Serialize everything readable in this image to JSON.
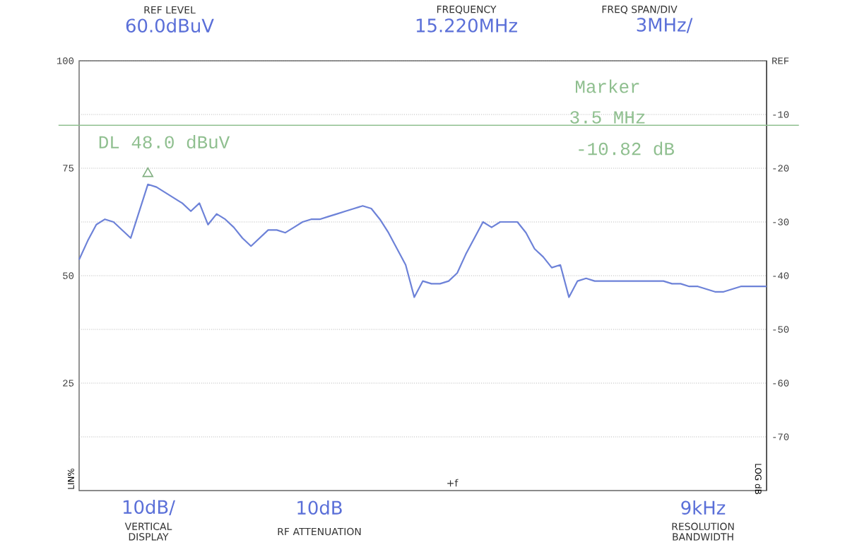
{
  "chart_data": {
    "type": "line",
    "ylabel": "LIN%",
    "y2label": "LOG dB",
    "categories": [
      null,
      null,
      null,
      null,
      null,
      null,
      null,
      null,
      null,
      null,
      null,
      null,
      null,
      null,
      null,
      null,
      null,
      null,
      null,
      null,
      null,
      null,
      null,
      null,
      null,
      null,
      null,
      null,
      null,
      null,
      null,
      null,
      null,
      null,
      null,
      null,
      null,
      null,
      null,
      null,
      null,
      null,
      null,
      null,
      null,
      null,
      null,
      null,
      null,
      null,
      null,
      null,
      null,
      null,
      null,
      null,
      null,
      null,
      null,
      null,
      null,
      null,
      null,
      null,
      null,
      null,
      null,
      null,
      null,
      null,
      null,
      null,
      null,
      null,
      null,
      null,
      null,
      null,
      null,
      null,
      null
    ],
    "series": [
      {
        "color": "#6d82d8",
        "axis": "y2",
        "values": [
          -37,
          -33.5,
          -30.5,
          -29.5,
          -30,
          -31.5,
          -33,
          -28,
          -23,
          -23.5,
          -24.5,
          -25.5,
          -26.5,
          -28,
          -26.5,
          -30.5,
          -28.5,
          -29.5,
          -31,
          -33,
          -34.5,
          -33,
          -31.5,
          -31.5,
          -32,
          -31,
          -30,
          -29.5,
          -29.5,
          -29,
          -28.5,
          -28,
          -27.5,
          -27,
          -27.5,
          -29.5,
          -32,
          -35,
          -38,
          -44,
          -41,
          -41.5,
          -41.5,
          -41,
          -39.5,
          -36,
          -33,
          -30,
          -31,
          -30,
          -30,
          -30,
          -32,
          -35,
          -36.5,
          -38.5,
          -38,
          -44,
          -41,
          -40.5,
          -41,
          -41,
          -41,
          -41,
          -41,
          -41,
          -41,
          -41,
          -41,
          -41.5,
          -41.5,
          -42,
          -42,
          -42.5,
          -43,
          -43,
          -42.5,
          -42,
          -42,
          -42,
          -42
        ]
      },
      {
        "type": "scatter",
        "color": "#7fae7f",
        "axis": "y2",
        "marker": "triangle",
        "values": [
          null,
          null,
          null,
          null,
          null,
          null,
          null,
          null,
          -21,
          null,
          null,
          null,
          null,
          null,
          null,
          null,
          null,
          null,
          null,
          null,
          null,
          null,
          null,
          null,
          null,
          null,
          null,
          null,
          null,
          null,
          null,
          null,
          null,
          null,
          null,
          null,
          null,
          null,
          null,
          null,
          null,
          null,
          null,
          null,
          null,
          null,
          null,
          null,
          null,
          null,
          null,
          null,
          null,
          null,
          null,
          null,
          null,
          null,
          null,
          null,
          null,
          null,
          null,
          null,
          null,
          null,
          null,
          null,
          null,
          null,
          null,
          null,
          null,
          null,
          null,
          null,
          null,
          null,
          null,
          null,
          null
        ]
      }
    ],
    "ylim": [
      0,
      100
    ],
    "yticks": [
      25,
      50,
      75,
      100
    ],
    "y2lim": [
      -80,
      0
    ],
    "y2ticks": [
      {
        "value": 0,
        "label": "REF"
      },
      -10,
      -20,
      -30,
      -40,
      -50,
      -60,
      -70
    ],
    "grid": true,
    "tick_labels": "y",
    "ref_lines": [
      {
        "axis": "y2",
        "value": -12,
        "label": "DL 48.0 dBuV",
        "color": "#8fbf8f"
      }
    ],
    "annotations": [
      "REF LEVEL",
      "60.0dBuV",
      "FREQUENCY",
      "15.220MHz",
      "FREQ SPAN/DIV",
      "3MHz/",
      "10dB/",
      "VERTICAL DISPLAY",
      "10dB",
      "RF ATTENUATION",
      "9kHz",
      "RESOLUTION BANDWIDTH",
      "Marker",
      "3.5 MHz",
      "-10.82 dB",
      "+f"
    ]
  }
}
